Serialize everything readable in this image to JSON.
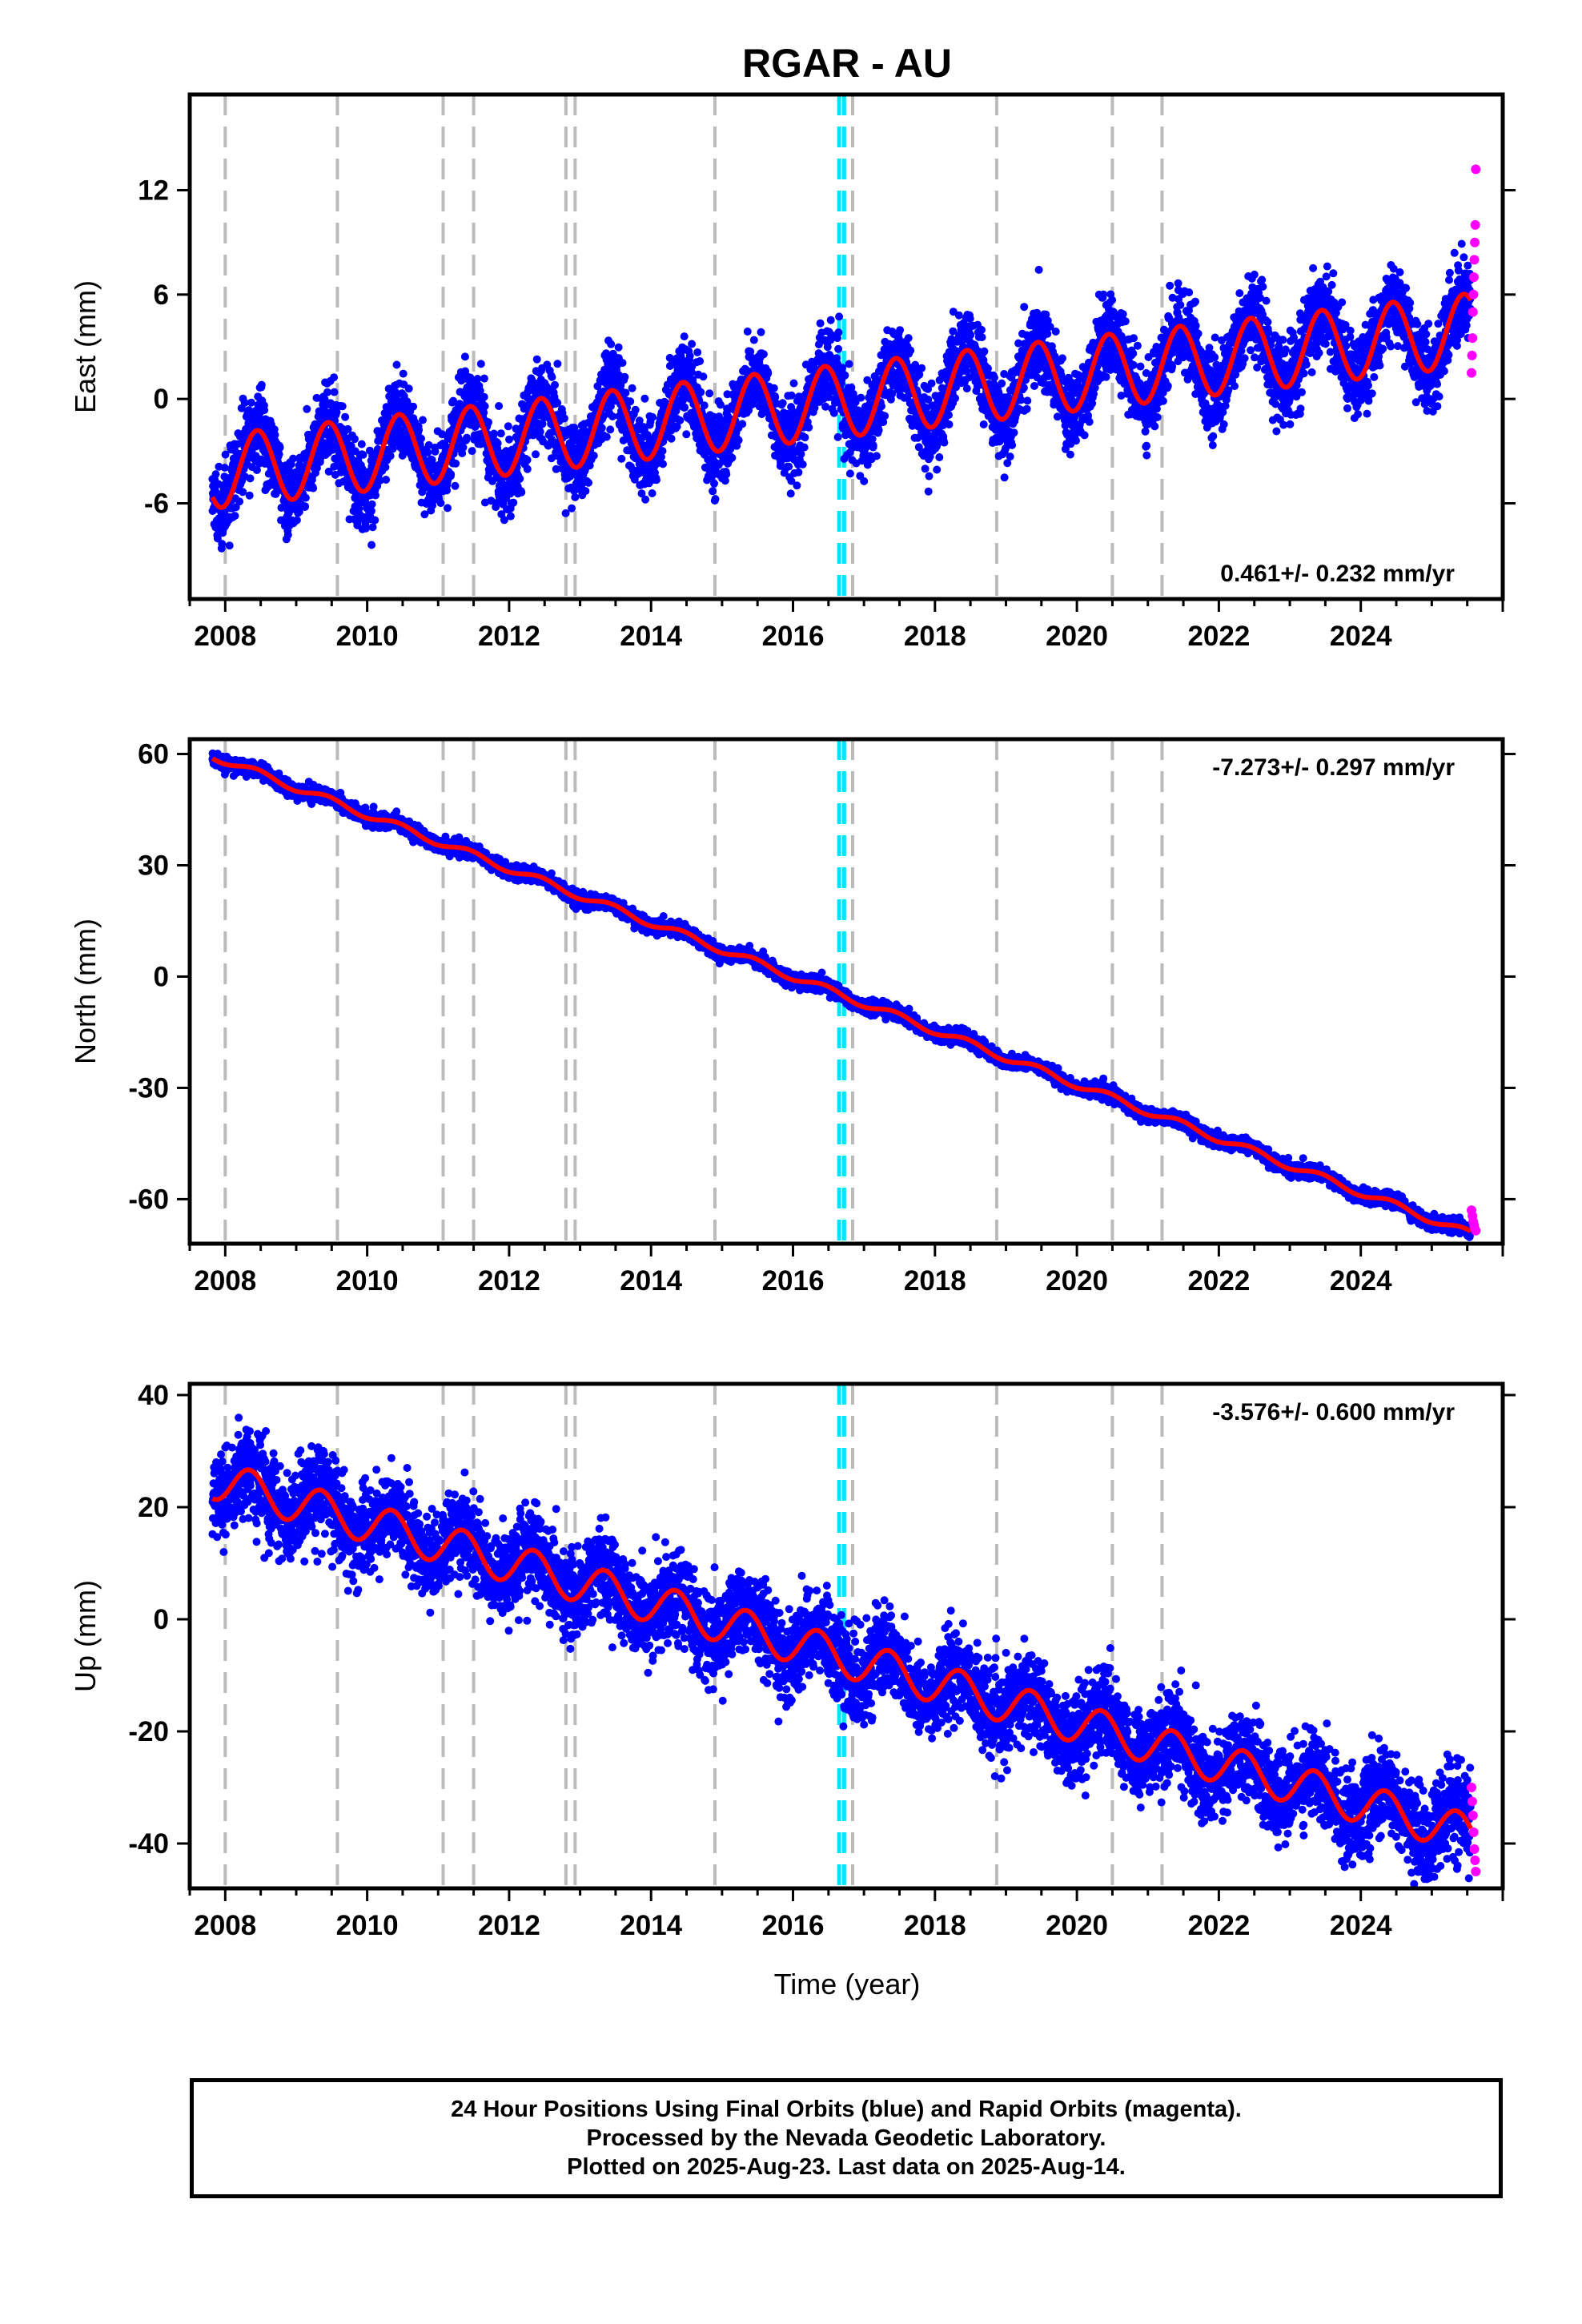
{
  "title": "RGAR - AU",
  "xlabel": "Time (year)",
  "footer_lines": [
    "24 Hour Positions Using Final Orbits (blue) and Rapid Orbits (magenta).",
    "Processed by the Nevada Geodetic Laboratory.",
    "Plotted on 2025-Aug-23. Last data on 2025-Aug-14."
  ],
  "colors": {
    "final": "#0000ff",
    "rapid": "#ff00ff",
    "model": "#ff0000",
    "equipment_change": "#bbbbbb",
    "earthquake": "#00e5ff"
  },
  "x_ticks": [
    "2008",
    "2010",
    "2012",
    "2014",
    "2016",
    "2018",
    "2020",
    "2022",
    "2024"
  ],
  "xlim": [
    2007.5,
    2026.0
  ],
  "vertical_lines": {
    "gray": [
      2008.0,
      2009.58,
      2011.07,
      2011.5,
      2012.8,
      2012.93,
      2014.9,
      2016.84,
      2018.87,
      2020.5,
      2021.2
    ],
    "cyan": [
      2016.65,
      2016.72
    ]
  },
  "chart_data": [
    {
      "type": "scatter",
      "component": "east",
      "ylabel": "East (mm)",
      "ylim": [
        -11.5,
        17.5
      ],
      "yticks": [
        "12",
        "6",
        "0",
        "-6"
      ],
      "rate_label": "0.461+/- 0.232 mm/yr",
      "rate_position": "bottom-right",
      "series": [
        {
          "name": "Final Orbits (blue)",
          "start": 2007.82,
          "end": 2025.55,
          "trend_start": -4.2,
          "rate": 0.461,
          "annual_amp": 2.1,
          "phase": 0.2,
          "scatter": 1.1
        },
        {
          "name": "Rapid Orbits (magenta)",
          "start": 2025.56,
          "end": 2025.62,
          "values": [
            1.5,
            2.5,
            3.5,
            5.0,
            6.0,
            7.0,
            8.0,
            9.0,
            10.0,
            13.2
          ]
        }
      ]
    },
    {
      "type": "scatter",
      "component": "north",
      "ylabel": "North (mm)",
      "ylim": [
        -72,
        64
      ],
      "yticks": [
        "60",
        "30",
        "0",
        "-30",
        "-60"
      ],
      "rate_label": "-7.273+/- 0.297 mm/yr",
      "rate_position": "top-right",
      "series": [
        {
          "name": "Final Orbits (blue)",
          "start": 2007.82,
          "end": 2025.55,
          "trend_start": 59.5,
          "rate": -7.273,
          "annual_amp": 1.0,
          "phase": 0.2,
          "scatter": 0.9
        },
        {
          "name": "Rapid Orbits (magenta)",
          "start": 2025.56,
          "end": 2025.62,
          "values": [
            -63.0,
            -64.5,
            -66.0,
            -67.0,
            -68.0,
            -68.5
          ]
        }
      ]
    },
    {
      "type": "scatter",
      "component": "up",
      "ylabel": "Up (mm)",
      "ylim": [
        -48,
        42
      ],
      "yticks": [
        "40",
        "20",
        "0",
        "-20",
        "-40"
      ],
      "rate_label": "-3.576+/- 0.600 mm/yr",
      "rate_position": "top-right",
      "series": [
        {
          "name": "Final Orbits (blue)",
          "start": 2007.82,
          "end": 2025.55,
          "trend_start": 25.0,
          "rate": -3.576,
          "annual_amp": 3.5,
          "phase": 0.1,
          "scatter": 3.8
        },
        {
          "name": "Rapid Orbits (magenta)",
          "start": 2025.56,
          "end": 2025.62,
          "values": [
            -30.0,
            -32.5,
            -35.0,
            -38.0,
            -41.0,
            -43.0,
            -45.0
          ]
        }
      ]
    }
  ]
}
